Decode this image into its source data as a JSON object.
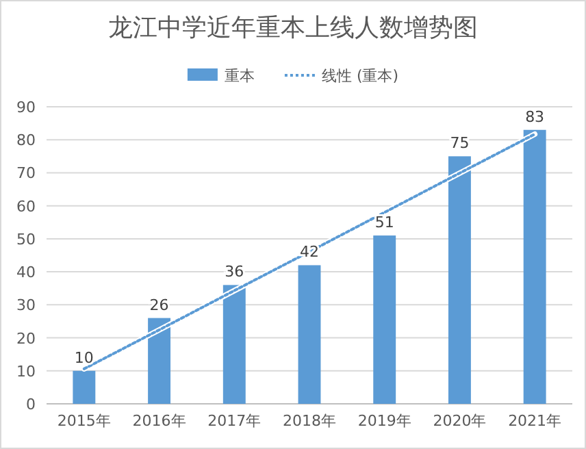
{
  "chart_data": {
    "type": "bar",
    "title": "龙江中学近年重本上线人数增势图",
    "categories": [
      "2015年",
      "2016年",
      "2017年",
      "2018年",
      "2019年",
      "2020年",
      "2021年"
    ],
    "series": [
      {
        "name": "重本",
        "color": "#5b9bd5",
        "values": [
          10,
          26,
          36,
          42,
          51,
          75,
          83
        ],
        "value_labels": [
          "10",
          "26",
          "36",
          "42",
          "51",
          "75",
          "83"
        ]
      },
      {
        "name": "线性 (重本)",
        "type": "line",
        "line_style": "dotted",
        "color": "#5b9bd5",
        "values": [
          10.6,
          22.4,
          34.3,
          46.1,
          58.0,
          69.9,
          81.7
        ]
      }
    ],
    "ylim": [
      0,
      90
    ],
    "yticks": [
      0,
      10,
      20,
      30,
      40,
      50,
      60,
      70,
      80,
      90
    ],
    "grid": "y",
    "legend": "top"
  }
}
